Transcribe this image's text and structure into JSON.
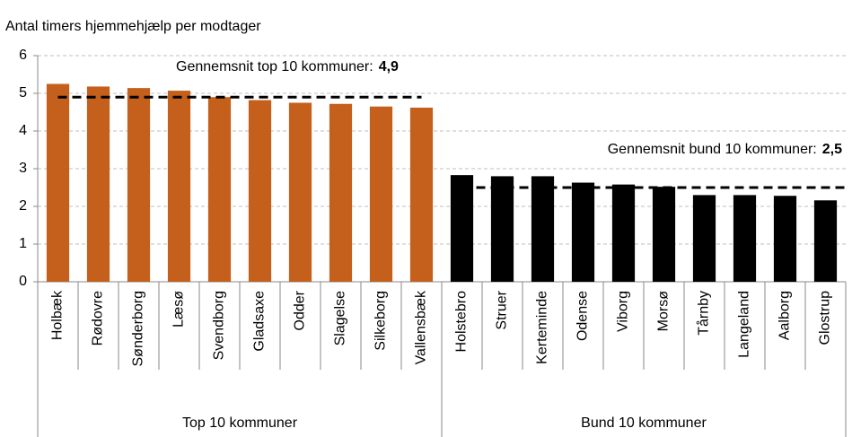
{
  "chart_data": {
    "type": "bar",
    "y_axis_label": "Antal timers hjemmehjælp per modtager",
    "ylim": [
      0,
      6
    ],
    "yticks": [
      0,
      1,
      2,
      3,
      4,
      5,
      6
    ],
    "grid": true,
    "groups": [
      {
        "label": "Top 10 kommuner",
        "color": "#c5601c",
        "categories": [
          "Holbæk",
          "Rødovre",
          "Sønderborg",
          "Læsø",
          "Svendborg",
          "Gladsaxe",
          "Odder",
          "Slagelse",
          "Silkeborg",
          "Vallensbæk"
        ],
        "values": [
          5.25,
          5.18,
          5.14,
          5.07,
          4.9,
          4.82,
          4.75,
          4.72,
          4.65,
          4.62
        ],
        "average": {
          "label": "Gennemsnit top 10 kommuner:",
          "value": 4.9,
          "value_label": "4,9"
        }
      },
      {
        "label": "Bund 10 kommuner",
        "color": "#000000",
        "categories": [
          "Holstebro",
          "Struer",
          "Kerteminde",
          "Odense",
          "Viborg",
          "Morsø",
          "Tårnby",
          "Langeland",
          "Aalborg",
          "Glostrup"
        ],
        "values": [
          2.83,
          2.8,
          2.8,
          2.63,
          2.58,
          2.52,
          2.3,
          2.3,
          2.28,
          2.16
        ],
        "average": {
          "label": "Gennemsnit bund 10 kommuner:",
          "value": 2.5,
          "value_label": "2,5"
        }
      }
    ]
  }
}
